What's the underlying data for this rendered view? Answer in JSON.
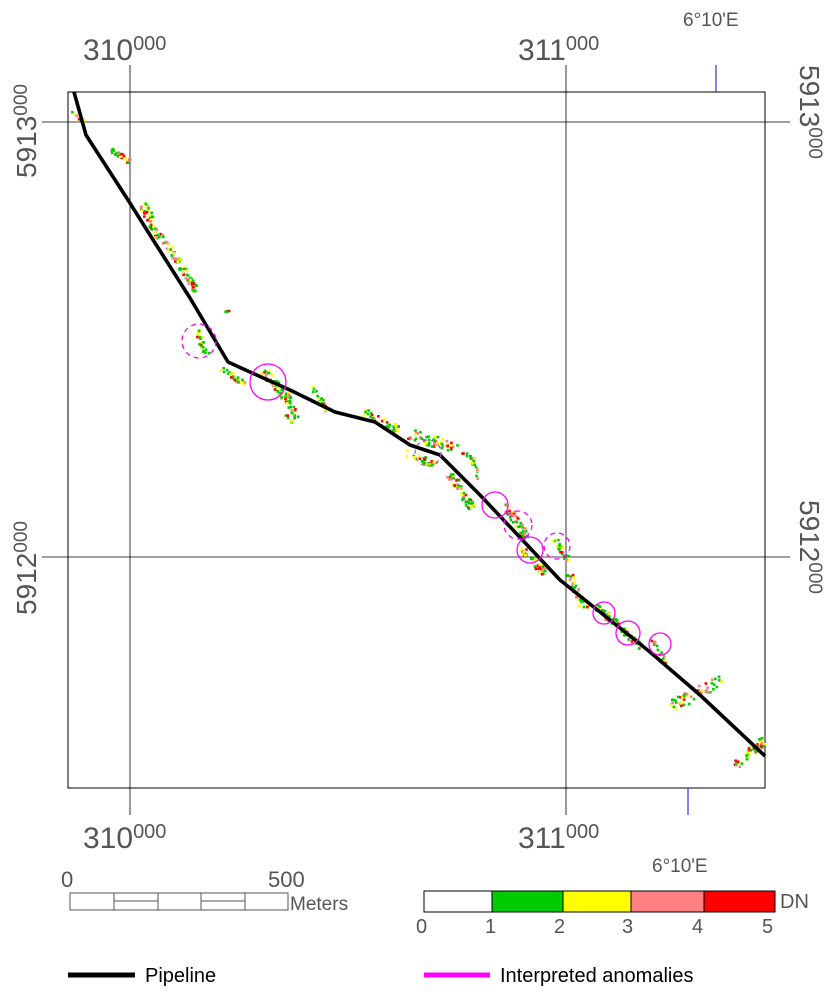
{
  "grid": {
    "top_labels": [
      {
        "main": "310",
        "sup": "000"
      },
      {
        "main": "311",
        "sup": "000"
      }
    ],
    "bottom_labels": [
      {
        "main": "310",
        "sup": "000"
      },
      {
        "main": "311",
        "sup": "000"
      }
    ],
    "left_labels": [
      {
        "main": "5913",
        "sup": "000"
      },
      {
        "main": "5912",
        "sup": "000"
      }
    ],
    "right_labels": [
      {
        "main": "5913",
        "sup": "000"
      },
      {
        "main": "5912",
        "sup": "000"
      }
    ],
    "meridian_label_top": "6°10'E",
    "meridian_label_bottom": "6°10'E"
  },
  "scale_bar": {
    "start": "0",
    "end": "500",
    "unit": "Meters"
  },
  "dn_legend": {
    "title": "DN",
    "ticks": [
      "0",
      "1",
      "2",
      "3",
      "4",
      "5"
    ],
    "classes": [
      {
        "range": "0-1",
        "color": "#ffffff"
      },
      {
        "range": "1-2",
        "color": "#00cc00"
      },
      {
        "range": "2-3",
        "color": "#ffff00"
      },
      {
        "range": "3-4",
        "color": "#ff8080"
      },
      {
        "range": "4-5",
        "color": "#ff0000"
      }
    ]
  },
  "legend": {
    "pipeline_label": "Pipeline",
    "pipeline_color": "#000000",
    "anomalies_label": "Interpreted anomalies",
    "anomalies_color": "#ff00ff"
  },
  "colors": {
    "grid_line": "#000000",
    "meridian": "#3333cc",
    "label": "#555555"
  }
}
